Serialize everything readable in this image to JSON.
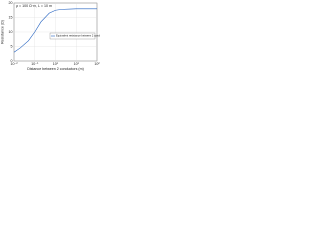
{
  "chart_data": {
    "type": "line",
    "subtitle": "ρ = 100 Ω·m, L = 10 m",
    "x_label": "Distance between 2 conductors (m)",
    "y_label": "Resistance (Ω)",
    "x": [
      0.01,
      0.02,
      0.05,
      0.1,
      0.2,
      0.5,
      1,
      2,
      5,
      10,
      20,
      50,
      100
    ],
    "series": [
      {
        "name": "Equivalent resistance between 2 conductors",
        "color": "#1f5fbf",
        "values": [
          3,
          4.5,
          7,
          10,
          13.5,
          16.5,
          17.5,
          17.8,
          17.9,
          18,
          18,
          18,
          18
        ]
      }
    ],
    "xlog": true,
    "xlim": [
      0.01,
      100
    ],
    "xticks": [
      {
        "value": 0.01,
        "label": "10⁻²"
      },
      {
        "value": 0.1,
        "label": "10⁻¹"
      },
      {
        "value": 1,
        "label": "10⁰"
      },
      {
        "value": 10,
        "label": "10¹"
      },
      {
        "value": 100,
        "label": "10²"
      }
    ],
    "ylim": [
      0,
      20
    ],
    "yticks": [
      0,
      5,
      10,
      15,
      20
    ],
    "grid": true,
    "legend": "center-right"
  }
}
